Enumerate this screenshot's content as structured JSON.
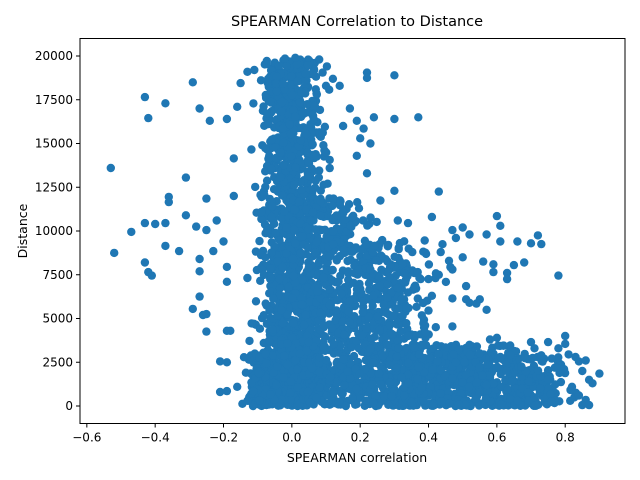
{
  "chart_data": {
    "type": "scatter",
    "title": "SPEARMAN Correlation to Distance",
    "xlabel": "SPEARMAN correlation",
    "ylabel": "Distance",
    "xlim": [
      -0.62,
      0.975
    ],
    "ylim": [
      -1000,
      21000
    ],
    "xticks": [
      -0.6,
      -0.4,
      -0.2,
      0.0,
      0.2,
      0.4,
      0.6,
      0.8
    ],
    "xtick_labels": [
      "−0.6",
      "−0.4",
      "−0.2",
      "0.0",
      "0.2",
      "0.4",
      "0.6",
      "0.8"
    ],
    "yticks": [
      0,
      2500,
      5000,
      7500,
      10000,
      12500,
      15000,
      17500,
      20000
    ],
    "ytick_labels": [
      "0",
      "2500",
      "5000",
      "7500",
      "10000",
      "12500",
      "15000",
      "17500",
      "20000"
    ],
    "grid": false,
    "legend": "none",
    "marker_color": "#1f77b4",
    "clusters": [
      {
        "x_center": 0.0,
        "x_spread": 0.09,
        "y_min": 0,
        "y_max": 19800,
        "count": 1400
      },
      {
        "x_center": 0.12,
        "x_spread": 0.12,
        "y_min": 0,
        "y_max": 12000,
        "count": 500
      },
      {
        "x_center": 0.28,
        "x_spread": 0.14,
        "y_min": 0,
        "y_max": 9500,
        "count": 450
      },
      {
        "x_center": 0.45,
        "x_spread": 0.2,
        "y_min": 0,
        "y_max": 3500,
        "count": 550
      },
      {
        "x_center": 0.68,
        "x_spread": 0.13,
        "y_min": 0,
        "y_max": 2800,
        "count": 220
      },
      {
        "x_center": -0.08,
        "x_spread": 0.05,
        "y_min": 0,
        "y_max": 3000,
        "count": 200
      }
    ],
    "points": [
      {
        "x": -0.53,
        "y": 13600
      },
      {
        "x": -0.52,
        "y": 8750
      },
      {
        "x": -0.47,
        "y": 9950
      },
      {
        "x": -0.43,
        "y": 17650
      },
      {
        "x": -0.42,
        "y": 16450
      },
      {
        "x": -0.43,
        "y": 10450
      },
      {
        "x": -0.4,
        "y": 10400
      },
      {
        "x": -0.43,
        "y": 8200
      },
      {
        "x": -0.42,
        "y": 7650
      },
      {
        "x": -0.41,
        "y": 7450
      },
      {
        "x": -0.37,
        "y": 17300
      },
      {
        "x": -0.37,
        "y": 10450
      },
      {
        "x": -0.36,
        "y": 11950
      },
      {
        "x": -0.36,
        "y": 11650
      },
      {
        "x": -0.37,
        "y": 9150
      },
      {
        "x": -0.33,
        "y": 8850
      },
      {
        "x": -0.31,
        "y": 13050
      },
      {
        "x": -0.31,
        "y": 10900
      },
      {
        "x": -0.29,
        "y": 18500
      },
      {
        "x": -0.27,
        "y": 17000
      },
      {
        "x": -0.28,
        "y": 10250
      },
      {
        "x": -0.27,
        "y": 8400
      },
      {
        "x": -0.27,
        "y": 7700
      },
      {
        "x": -0.29,
        "y": 5550
      },
      {
        "x": -0.27,
        "y": 6250
      },
      {
        "x": -0.26,
        "y": 5200
      },
      {
        "x": -0.25,
        "y": 5250
      },
      {
        "x": -0.25,
        "y": 4250
      },
      {
        "x": -0.24,
        "y": 16300
      },
      {
        "x": -0.25,
        "y": 11850
      },
      {
        "x": -0.25,
        "y": 10050
      },
      {
        "x": -0.22,
        "y": 10600
      },
      {
        "x": -0.23,
        "y": 8850
      },
      {
        "x": -0.2,
        "y": 9400
      },
      {
        "x": -0.19,
        "y": 16400
      },
      {
        "x": -0.19,
        "y": 7950
      },
      {
        "x": -0.19,
        "y": 7100
      },
      {
        "x": -0.18,
        "y": 4300
      },
      {
        "x": -0.19,
        "y": 4300
      },
      {
        "x": -0.21,
        "y": 2550
      },
      {
        "x": -0.19,
        "y": 2500
      },
      {
        "x": -0.21,
        "y": 800
      },
      {
        "x": -0.19,
        "y": 850
      },
      {
        "x": -0.15,
        "y": 18450
      },
      {
        "x": -0.16,
        "y": 17100
      },
      {
        "x": -0.17,
        "y": 14150
      },
      {
        "x": -0.17,
        "y": 12000
      },
      {
        "x": -0.16,
        "y": 1100
      },
      {
        "x": -0.13,
        "y": 19100
      },
      {
        "x": -0.11,
        "y": 19200
      },
      {
        "x": -0.13,
        "y": 300
      },
      {
        "x": 0.09,
        "y": 19050
      },
      {
        "x": 0.12,
        "y": 18700
      },
      {
        "x": 0.14,
        "y": 18300
      },
      {
        "x": 0.17,
        "y": 17000
      },
      {
        "x": 0.19,
        "y": 16300
      },
      {
        "x": 0.22,
        "y": 19050
      },
      {
        "x": 0.22,
        "y": 18750
      },
      {
        "x": 0.24,
        "y": 16500
      },
      {
        "x": 0.21,
        "y": 15850
      },
      {
        "x": 0.2,
        "y": 15300
      },
      {
        "x": 0.23,
        "y": 15000
      },
      {
        "x": 0.19,
        "y": 14300
      },
      {
        "x": 0.22,
        "y": 13300
      },
      {
        "x": 0.3,
        "y": 18900
      },
      {
        "x": 0.3,
        "y": 16400
      },
      {
        "x": 0.37,
        "y": 16500
      },
      {
        "x": 0.3,
        "y": 12300
      },
      {
        "x": 0.43,
        "y": 12250
      },
      {
        "x": 0.31,
        "y": 10600
      },
      {
        "x": 0.41,
        "y": 10800
      },
      {
        "x": 0.34,
        "y": 10450
      },
      {
        "x": 0.47,
        "y": 10050
      },
      {
        "x": 0.48,
        "y": 9600
      },
      {
        "x": 0.5,
        "y": 10200
      },
      {
        "x": 0.52,
        "y": 9800
      },
      {
        "x": 0.57,
        "y": 9800
      },
      {
        "x": 0.6,
        "y": 10850
      },
      {
        "x": 0.61,
        "y": 10300
      },
      {
        "x": 0.61,
        "y": 9400
      },
      {
        "x": 0.66,
        "y": 9400
      },
      {
        "x": 0.56,
        "y": 8250
      },
      {
        "x": 0.59,
        "y": 8100
      },
      {
        "x": 0.59,
        "y": 7650
      },
      {
        "x": 0.63,
        "y": 7600
      },
      {
        "x": 0.65,
        "y": 8050
      },
      {
        "x": 0.68,
        "y": 8200
      },
      {
        "x": 0.63,
        "y": 7250
      },
      {
        "x": 0.7,
        "y": 9300
      },
      {
        "x": 0.72,
        "y": 9750
      },
      {
        "x": 0.73,
        "y": 9250
      },
      {
        "x": 0.78,
        "y": 7450
      },
      {
        "x": 0.46,
        "y": 8300
      },
      {
        "x": 0.47,
        "y": 7800
      },
      {
        "x": 0.5,
        "y": 8500
      },
      {
        "x": 0.51,
        "y": 6850
      },
      {
        "x": 0.51,
        "y": 6100
      },
      {
        "x": 0.54,
        "y": 5850
      },
      {
        "x": 0.55,
        "y": 6100
      },
      {
        "x": 0.57,
        "y": 5500
      },
      {
        "x": 0.52,
        "y": 5900
      },
      {
        "x": 0.47,
        "y": 6150
      },
      {
        "x": 0.47,
        "y": 4550
      },
      {
        "x": 0.4,
        "y": 7250
      },
      {
        "x": 0.43,
        "y": 7500
      },
      {
        "x": 0.41,
        "y": 6300
      },
      {
        "x": 0.4,
        "y": 5450
      },
      {
        "x": 0.39,
        "y": 4600
      },
      {
        "x": 0.36,
        "y": 4050
      },
      {
        "x": 0.34,
        "y": 4000
      },
      {
        "x": 0.39,
        "y": 4200
      },
      {
        "x": 0.58,
        "y": 3800
      },
      {
        "x": 0.6,
        "y": 3900
      },
      {
        "x": 0.62,
        "y": 3450
      },
      {
        "x": 0.64,
        "y": 2900
      },
      {
        "x": 0.7,
        "y": 3650
      },
      {
        "x": 0.71,
        "y": 3300
      },
      {
        "x": 0.73,
        "y": 2900
      },
      {
        "x": 0.75,
        "y": 3650
      },
      {
        "x": 0.78,
        "y": 3300
      },
      {
        "x": 0.8,
        "y": 4000
      },
      {
        "x": 0.8,
        "y": 3550
      },
      {
        "x": 0.81,
        "y": 2950
      },
      {
        "x": 0.83,
        "y": 2800
      },
      {
        "x": 0.84,
        "y": 2550
      },
      {
        "x": 0.86,
        "y": 2600
      },
      {
        "x": 0.85,
        "y": 2000
      },
      {
        "x": 0.87,
        "y": 1500
      },
      {
        "x": 0.88,
        "y": 1300
      },
      {
        "x": 0.9,
        "y": 1850
      },
      {
        "x": 0.82,
        "y": 1100
      },
      {
        "x": 0.84,
        "y": 600
      },
      {
        "x": 0.86,
        "y": 350
      },
      {
        "x": 0.85,
        "y": 50
      },
      {
        "x": 0.87,
        "y": 50
      },
      {
        "x": 0.76,
        "y": 250
      },
      {
        "x": 0.71,
        "y": 500
      },
      {
        "x": 0.67,
        "y": 50
      },
      {
        "x": 0.66,
        "y": 300
      },
      {
        "x": 0.57,
        "y": 1200
      },
      {
        "x": 0.55,
        "y": 3000
      },
      {
        "x": 0.52,
        "y": 3500
      },
      {
        "x": 0.45,
        "y": 3350
      },
      {
        "x": 0.48,
        "y": 2500
      },
      {
        "x": 0.08,
        "y": 19800
      },
      {
        "x": 0.01,
        "y": 19900
      },
      {
        "x": -0.02,
        "y": 19850
      },
      {
        "x": 0.1,
        "y": 18300
      },
      {
        "x": 0.15,
        "y": 16000
      }
    ]
  }
}
